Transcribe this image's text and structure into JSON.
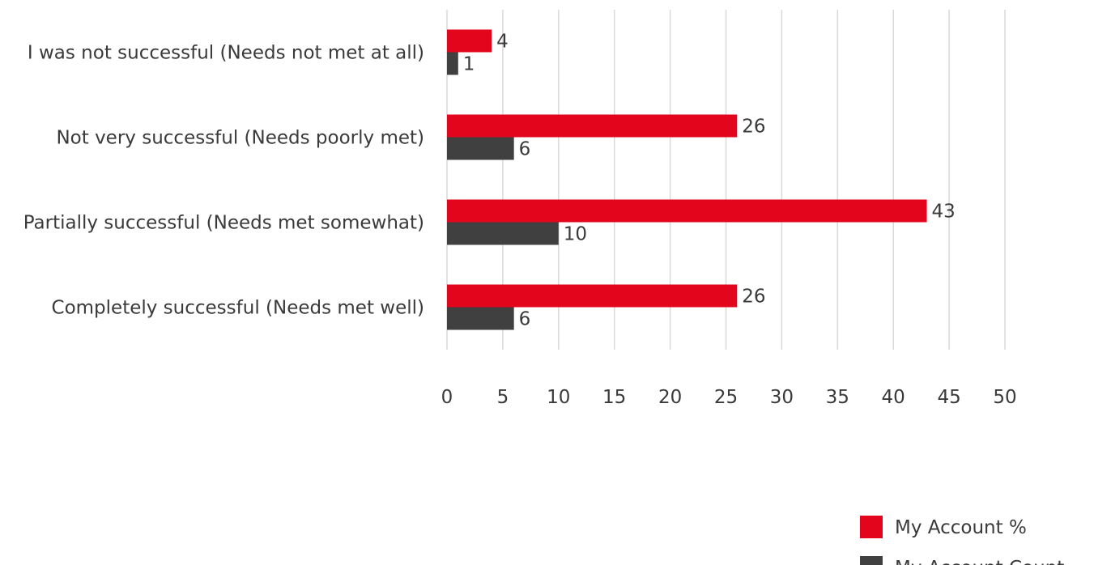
{
  "chart_data": {
    "type": "bar",
    "orientation": "horizontal",
    "categories": [
      "I was not successful (Needs not met at all)",
      "Not very successful (Needs poorly met)",
      "Partially successful (Needs met somewhat)",
      "Completely successful (Needs met well)"
    ],
    "series": [
      {
        "name": "My Account %",
        "values": [
          4,
          26,
          43,
          26
        ],
        "color": "#e3051b"
      },
      {
        "name": "My Account Count",
        "values": [
          1,
          6,
          10,
          6
        ],
        "color": "#404040"
      }
    ],
    "xlim": [
      0,
      50
    ],
    "xticks": [
      "0",
      "5",
      "10",
      "15",
      "20",
      "25",
      "30",
      "35",
      "40",
      "45",
      "50"
    ],
    "grid": true,
    "legend_position": "bottom-right",
    "title": "",
    "xlabel": "",
    "ylabel": ""
  }
}
